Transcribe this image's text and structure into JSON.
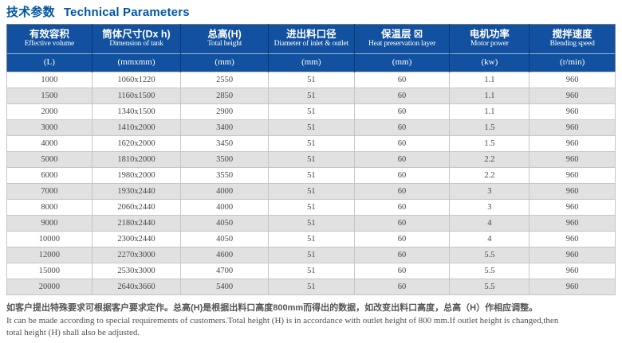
{
  "title": {
    "zh": "技术参数",
    "en": "Technical Parameters"
  },
  "colors": {
    "title": "#0056a4",
    "header_bg": "#11519f",
    "header_divider": "#0c3a75",
    "row_alt": "#e1e1e1",
    "outer_border": "#7e7e7e",
    "body_text": "#464646"
  },
  "table": {
    "columns": [
      {
        "zh": "有效容积",
        "en": "Effective volume",
        "unit": "(L)",
        "width": "14.0%"
      },
      {
        "zh": "筒体尺寸(Dx h)",
        "en": "Dimension of tank",
        "unit": "(mmxmm)",
        "width": "14.6%"
      },
      {
        "zh": "总高(H)",
        "en": "Total height",
        "unit": "(mm)",
        "width": "14.4%"
      },
      {
        "zh": "进出料口径",
        "en": "Diameter of inlet & outlet",
        "unit": "(mm)",
        "width": "14.1%"
      },
      {
        "zh": "保温层 ☒",
        "en": "Heat preservation layer",
        "unit": "(mm)",
        "width": "15.7%"
      },
      {
        "zh": "电机功率",
        "en": "Motor power",
        "unit": "(kw)",
        "width": "13.1%"
      },
      {
        "zh": "搅拌速度",
        "en": "Blending speed",
        "unit": "(r/min)",
        "width": "14.1%"
      }
    ],
    "rows": [
      [
        "1000",
        "1060x1220",
        "2550",
        "51",
        "60",
        "1.1",
        "960"
      ],
      [
        "1500",
        "1160x1500",
        "2850",
        "51",
        "60",
        "1.1",
        "960"
      ],
      [
        "2000",
        "1340x1500",
        "2900",
        "51",
        "60",
        "1.1",
        "960"
      ],
      [
        "3000",
        "1410x2000",
        "3400",
        "51",
        "60",
        "1.5",
        "960"
      ],
      [
        "4000",
        "1620x2000",
        "3450",
        "51",
        "60",
        "1.5",
        "960"
      ],
      [
        "5000",
        "1810x2000",
        "3500",
        "51",
        "60",
        "2.2",
        "960"
      ],
      [
        "6000",
        "1980x2000",
        "3550",
        "51",
        "60",
        "2.2",
        "960"
      ],
      [
        "7000",
        "1930x2440",
        "4000",
        "51",
        "60",
        "3",
        "960"
      ],
      [
        "8000",
        "2060x2440",
        "4000",
        "51",
        "60",
        "3",
        "960"
      ],
      [
        "9000",
        "2180x2440",
        "4050",
        "51",
        "60",
        "4",
        "960"
      ],
      [
        "10000",
        "2300x2440",
        "4050",
        "51",
        "60",
        "4",
        "960"
      ],
      [
        "12000",
        "2270x3000",
        "4600",
        "51",
        "60",
        "5.5",
        "960"
      ],
      [
        "15000",
        "2530x3000",
        "4700",
        "51",
        "60",
        "5.5",
        "960"
      ],
      [
        "20000",
        "2640x3660",
        "5400",
        "51",
        "60",
        "5.5",
        "960"
      ]
    ]
  },
  "notes": {
    "zh": "如客户提出特殊要求可根据客户要求定作。总高(H)是根据出料口高度800mm而得出的数据，如改变出料口高度，总高（H）作相应调整。",
    "en_line1": "It can be made according to special requirements of customers.Total height (H) is in accordance with outlet height of 800 mm.If outlet height is changed,then",
    "en_line2": "total height (H) shall also be adjusted."
  }
}
